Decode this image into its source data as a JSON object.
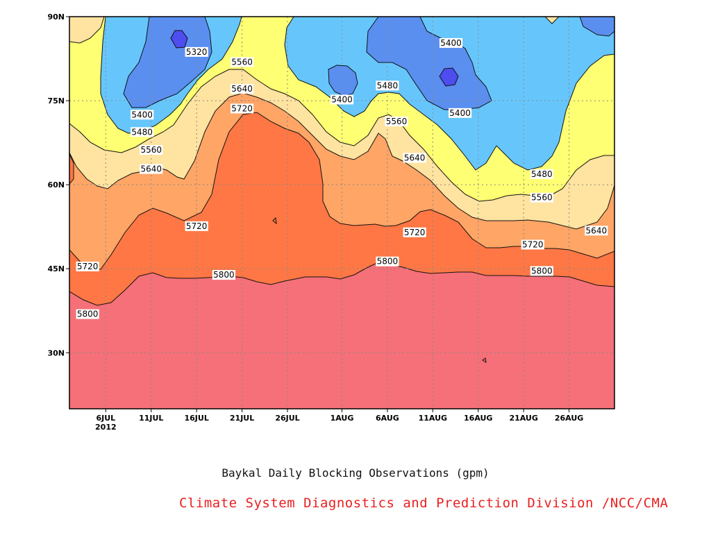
{
  "chart_data": {
    "type": "heatmap",
    "title": "Baykal Daily Blocking Observations (gpm)",
    "xlabel": "",
    "ylabel": "",
    "x_range": [
      "2012-07-02",
      "2012-08-31"
    ],
    "ylim": [
      20,
      90
    ],
    "x_ticks": [
      "6JUL",
      "11JUL",
      "16JUL",
      "21JUL",
      "26JUL",
      "1AUG",
      "6AUG",
      "11AUG",
      "16AUG",
      "21AUG",
      "26AUG"
    ],
    "x_year_label": "2012",
    "y_ticks": [
      "90N",
      "75N",
      "60N",
      "45N",
      "30N"
    ],
    "grid": true,
    "contour_levels": [
      5240,
      5320,
      5400,
      5480,
      5560,
      5640,
      5720,
      5800
    ],
    "level_colors": [
      "#4d4df0",
      "#5a8ff0",
      "#66c6fc",
      "#ffff73",
      "#ffe3a0",
      "#ffa566",
      "#ff7744",
      "#f57078"
    ],
    "contour_labels": [
      {
        "date": "2012-07-16",
        "lat": 83.7,
        "text": "5320"
      },
      {
        "date": "2012-07-21",
        "lat": 81.9,
        "text": "5560"
      },
      {
        "date": "2012-07-21",
        "lat": 77.1,
        "text": "5640"
      },
      {
        "date": "2012-07-21",
        "lat": 73.6,
        "text": "5720"
      },
      {
        "date": "2012-07-10",
        "lat": 72.5,
        "text": "5400"
      },
      {
        "date": "2012-07-10",
        "lat": 69.4,
        "text": "5480"
      },
      {
        "date": "2012-07-11",
        "lat": 66.2,
        "text": "5560"
      },
      {
        "date": "2012-07-11",
        "lat": 62.8,
        "text": "5640"
      },
      {
        "date": "2012-07-16",
        "lat": 52.6,
        "text": "5720"
      },
      {
        "date": "2012-07-04",
        "lat": 45.4,
        "text": "5720"
      },
      {
        "date": "2012-07-04",
        "lat": 36.9,
        "text": "5800"
      },
      {
        "date": "2012-07-19",
        "lat": 43.9,
        "text": "5800"
      },
      {
        "date": "2012-08-01",
        "lat": 75.2,
        "text": "5400"
      },
      {
        "date": "2012-08-06",
        "lat": 77.7,
        "text": "5480"
      },
      {
        "date": "2012-08-07",
        "lat": 71.3,
        "text": "5560"
      },
      {
        "date": "2012-08-09",
        "lat": 64.8,
        "text": "5640"
      },
      {
        "date": "2012-08-09",
        "lat": 51.5,
        "text": "5720"
      },
      {
        "date": "2012-08-06",
        "lat": 46.3,
        "text": "5800"
      },
      {
        "date": "2012-08-13",
        "lat": 85.3,
        "text": "5400"
      },
      {
        "date": "2012-08-14",
        "lat": 72.8,
        "text": "5400"
      },
      {
        "date": "2012-08-23",
        "lat": 61.9,
        "text": "5480"
      },
      {
        "date": "2012-08-23",
        "lat": 57.7,
        "text": "5560"
      },
      {
        "date": "2012-08-29",
        "lat": 51.8,
        "text": "5640"
      },
      {
        "date": "2012-08-22",
        "lat": 49.3,
        "text": "5720"
      },
      {
        "date": "2012-08-23",
        "lat": 44.6,
        "text": "5800"
      }
    ]
  },
  "captions": {
    "main": "Baykal Daily Blocking Observations (gpm)",
    "credit": "Climate System Diagnostics and Prediction Division /NCC/CMA",
    "credit_color": "#e82020"
  }
}
